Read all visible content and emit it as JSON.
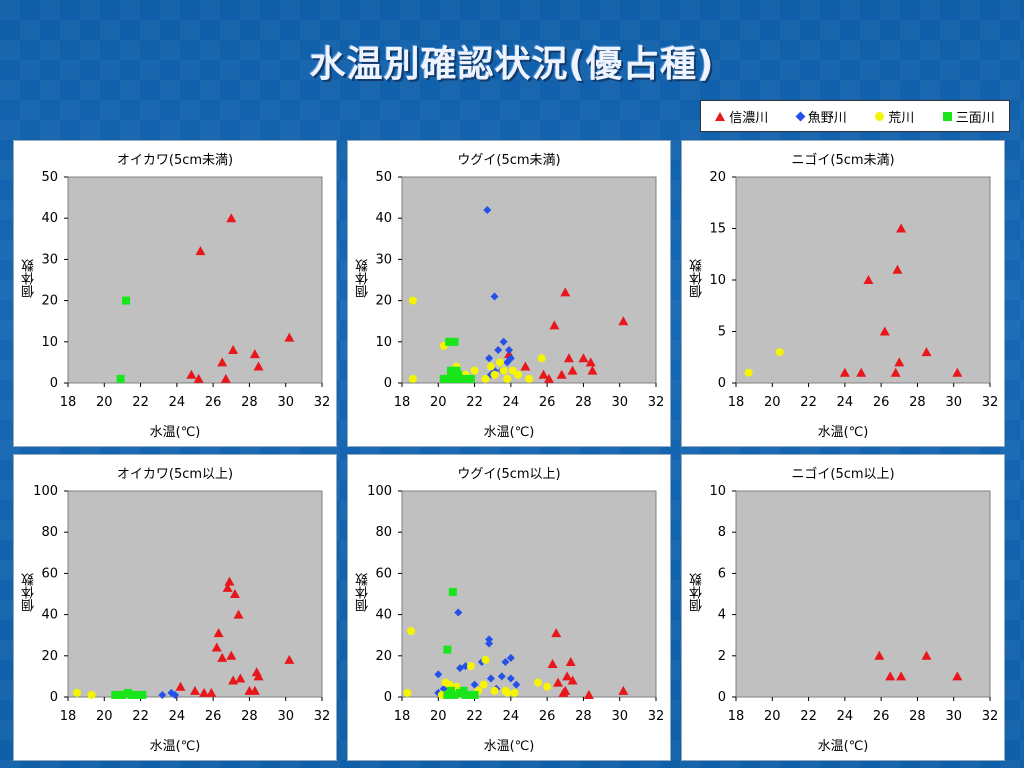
{
  "title": "水温別確認状況(優占種)",
  "legend": [
    {
      "label": "信濃川",
      "marker": "triangle",
      "color": "#e8171b"
    },
    {
      "label": "魚野川",
      "marker": "diamond",
      "color": "#2551e8"
    },
    {
      "label": "荒川",
      "marker": "circle",
      "color": "#f5f500"
    },
    {
      "label": "三面川",
      "marker": "square",
      "color": "#19e61a"
    }
  ],
  "chart_data": [
    {
      "type": "scatter",
      "title": "オイカワ(5cm未満)",
      "xlabel": "水温(℃)",
      "ylabel": "個体数",
      "xlim": [
        18,
        32
      ],
      "xticks": [
        18,
        20,
        22,
        24,
        26,
        28,
        30,
        32
      ],
      "ylim": [
        0,
        50
      ],
      "yticks": [
        0,
        10,
        20,
        30,
        40,
        50
      ],
      "series": [
        {
          "name": "信濃川",
          "values": [
            [
              25.3,
              32
            ],
            [
              27,
              40
            ],
            [
              24.8,
              2
            ],
            [
              25.2,
              1
            ],
            [
              26.5,
              5
            ],
            [
              26.7,
              1
            ],
            [
              27.1,
              8
            ],
            [
              28.3,
              7
            ],
            [
              28.5,
              4
            ],
            [
              30.2,
              11
            ]
          ]
        },
        {
          "name": "魚野川",
          "values": []
        },
        {
          "name": "荒川",
          "values": []
        },
        {
          "name": "三面川",
          "values": [
            [
              21.2,
              20
            ],
            [
              20.9,
              1
            ]
          ]
        }
      ]
    },
    {
      "type": "scatter",
      "title": "ウグイ(5cm未満)",
      "xlabel": "水温(℃)",
      "ylabel": "個体数",
      "xlim": [
        18,
        32
      ],
      "xticks": [
        18,
        20,
        22,
        24,
        26,
        28,
        30,
        32
      ],
      "ylim": [
        0,
        50
      ],
      "yticks": [
        0,
        10,
        20,
        30,
        40,
        50
      ],
      "series": [
        {
          "name": "信濃川",
          "values": [
            [
              23.9,
              7
            ],
            [
              24.8,
              4
            ],
            [
              25.8,
              2
            ],
            [
              26.1,
              1
            ],
            [
              26.4,
              14
            ],
            [
              26.8,
              2
            ],
            [
              27,
              22
            ],
            [
              27.2,
              6
            ],
            [
              27.4,
              3
            ],
            [
              28,
              6
            ],
            [
              28.4,
              5
            ],
            [
              28.5,
              3
            ],
            [
              30.2,
              15
            ]
          ]
        },
        {
          "name": "魚野川",
          "values": [
            [
              22.7,
              42
            ],
            [
              22.8,
              6
            ],
            [
              23.1,
              21
            ],
            [
              23.1,
              3
            ],
            [
              23.3,
              8
            ],
            [
              23.6,
              10
            ],
            [
              23.9,
              8
            ],
            [
              23.8,
              5
            ],
            [
              22.9,
              2
            ],
            [
              23.5,
              3
            ],
            [
              24,
              6
            ],
            [
              20.9,
              10
            ]
          ]
        },
        {
          "name": "荒川",
          "values": [
            [
              18.6,
              20
            ],
            [
              18.6,
              1
            ],
            [
              20.3,
              9
            ],
            [
              20.6,
              10
            ],
            [
              21.5,
              2
            ],
            [
              22,
              3
            ],
            [
              22.6,
              1
            ],
            [
              23.1,
              2
            ],
            [
              23.4,
              5
            ],
            [
              23.6,
              3
            ],
            [
              23.8,
              1
            ],
            [
              24.1,
              3
            ],
            [
              24.4,
              2
            ],
            [
              25,
              1
            ],
            [
              25.7,
              6
            ],
            [
              21,
              4
            ],
            [
              22.9,
              4
            ]
          ]
        },
        {
          "name": "三面川",
          "values": [
            [
              20.6,
              10
            ],
            [
              20.9,
              10
            ],
            [
              20.7,
              3
            ],
            [
              20.3,
              1
            ],
            [
              20.6,
              1
            ],
            [
              20.8,
              2
            ],
            [
              21,
              1
            ],
            [
              21.1,
              2
            ],
            [
              21.3,
              1
            ],
            [
              21.5,
              1
            ],
            [
              21.8,
              1
            ],
            [
              21,
              3
            ]
          ]
        }
      ]
    },
    {
      "type": "scatter",
      "title": "ニゴイ(5cm未満)",
      "xlabel": "水温(℃)",
      "ylabel": "個体数",
      "xlim": [
        18,
        32
      ],
      "xticks": [
        18,
        20,
        22,
        24,
        26,
        28,
        30,
        32
      ],
      "ylim": [
        0,
        20
      ],
      "yticks": [
        0,
        5,
        10,
        15,
        20
      ],
      "series": [
        {
          "name": "信濃川",
          "values": [
            [
              24,
              1
            ],
            [
              24.9,
              1
            ],
            [
              25.3,
              10
            ],
            [
              26.2,
              5
            ],
            [
              26.8,
              1
            ],
            [
              26.9,
              11
            ],
            [
              27,
              2
            ],
            [
              27.1,
              15
            ],
            [
              28.5,
              3
            ],
            [
              30.2,
              1
            ]
          ]
        },
        {
          "name": "魚野川",
          "values": []
        },
        {
          "name": "荒川",
          "values": [
            [
              18.7,
              1
            ],
            [
              20.4,
              3
            ]
          ]
        },
        {
          "name": "三面川",
          "values": []
        }
      ]
    },
    {
      "type": "scatter",
      "title": "オイカワ(5cm以上)",
      "xlabel": "水温(℃)",
      "ylabel": "個体数",
      "xlim": [
        18,
        32
      ],
      "xticks": [
        18,
        20,
        22,
        24,
        26,
        28,
        30,
        32
      ],
      "ylim": [
        0,
        100
      ],
      "yticks": [
        0,
        20,
        40,
        60,
        80,
        100
      ],
      "series": [
        {
          "name": "信濃川",
          "values": [
            [
              24.2,
              5
            ],
            [
              25,
              3
            ],
            [
              25.5,
              2
            ],
            [
              25.9,
              2
            ],
            [
              26.2,
              24
            ],
            [
              26.3,
              31
            ],
            [
              26.5,
              19
            ],
            [
              26.8,
              53
            ],
            [
              26.9,
              56
            ],
            [
              27,
              20
            ],
            [
              27.1,
              8
            ],
            [
              27.2,
              50
            ],
            [
              27.4,
              40
            ],
            [
              27.5,
              9
            ],
            [
              28,
              3
            ],
            [
              28.3,
              3
            ],
            [
              28.4,
              12
            ],
            [
              28.5,
              10
            ],
            [
              30.2,
              18
            ]
          ]
        },
        {
          "name": "魚野川",
          "values": [
            [
              23.2,
              1
            ],
            [
              23.7,
              2
            ],
            [
              23.9,
              1
            ]
          ]
        },
        {
          "name": "荒川",
          "values": [
            [
              18.5,
              2
            ],
            [
              19.3,
              1
            ]
          ]
        },
        {
          "name": "三面川",
          "values": [
            [
              20.6,
              1
            ],
            [
              20.9,
              1
            ],
            [
              21,
              1
            ],
            [
              21.3,
              2
            ],
            [
              21.5,
              1
            ],
            [
              21.8,
              1
            ],
            [
              22.1,
              1
            ]
          ]
        }
      ]
    },
    {
      "type": "scatter",
      "title": "ウグイ(5cm以上)",
      "xlabel": "水温(℃)",
      "ylabel": "個体数",
      "xlim": [
        18,
        32
      ],
      "xticks": [
        18,
        20,
        22,
        24,
        26,
        28,
        30,
        32
      ],
      "ylim": [
        0,
        100
      ],
      "yticks": [
        0,
        20,
        40,
        60,
        80,
        100
      ],
      "series": [
        {
          "name": "信濃川",
          "values": [
            [
              26.3,
              16
            ],
            [
              26.5,
              31
            ],
            [
              26.6,
              7
            ],
            [
              26.9,
              2
            ],
            [
              27,
              3
            ],
            [
              27.1,
              10
            ],
            [
              27.3,
              17
            ],
            [
              27.4,
              8
            ],
            [
              28.3,
              1
            ],
            [
              30.2,
              3
            ]
          ]
        },
        {
          "name": "魚野川",
          "values": [
            [
              20,
              11
            ],
            [
              20,
              2
            ],
            [
              20.3,
              4
            ],
            [
              21.1,
              41
            ],
            [
              21.2,
              14
            ],
            [
              21.5,
              15
            ],
            [
              22.4,
              17
            ],
            [
              22.8,
              26
            ],
            [
              22.8,
              28
            ],
            [
              22.9,
              9
            ],
            [
              23.2,
              4
            ],
            [
              23.5,
              10
            ],
            [
              23.7,
              17
            ],
            [
              24,
              19
            ],
            [
              24,
              9
            ],
            [
              22,
              6
            ],
            [
              20.6,
              6
            ],
            [
              24.3,
              6
            ]
          ]
        },
        {
          "name": "荒川",
          "values": [
            [
              18.3,
              2
            ],
            [
              18.5,
              32
            ],
            [
              20.2,
              1
            ],
            [
              20.4,
              7
            ],
            [
              20.6,
              6
            ],
            [
              21,
              5
            ],
            [
              21.8,
              15
            ],
            [
              22.2,
              3
            ],
            [
              22.6,
              18
            ],
            [
              23.1,
              3
            ],
            [
              23.7,
              3
            ],
            [
              23.8,
              2
            ],
            [
              24.2,
              2
            ],
            [
              25.5,
              7
            ],
            [
              26,
              5
            ],
            [
              22.5,
              6
            ]
          ]
        },
        {
          "name": "三面川",
          "values": [
            [
              20.5,
              23
            ],
            [
              20.8,
              51
            ],
            [
              20.7,
              3
            ],
            [
              20.9,
              1
            ],
            [
              21.2,
              2
            ],
            [
              21.4,
              3
            ],
            [
              21.5,
              1
            ],
            [
              21.8,
              1
            ],
            [
              22,
              1
            ],
            [
              20.5,
              1
            ]
          ]
        }
      ]
    },
    {
      "type": "scatter",
      "title": "ニゴイ(5cm以上)",
      "xlabel": "水温(℃)",
      "ylabel": "個体数",
      "xlim": [
        18,
        32
      ],
      "xticks": [
        18,
        20,
        22,
        24,
        26,
        28,
        30,
        32
      ],
      "ylim": [
        0,
        10
      ],
      "yticks": [
        0,
        2,
        4,
        6,
        8,
        10
      ],
      "series": [
        {
          "name": "信濃川",
          "values": [
            [
              25.9,
              2
            ],
            [
              26.5,
              1
            ],
            [
              27.1,
              1
            ],
            [
              28.5,
              2
            ],
            [
              30.2,
              1
            ]
          ]
        },
        {
          "name": "魚野川",
          "values": []
        },
        {
          "name": "荒川",
          "values": []
        },
        {
          "name": "三面川",
          "values": []
        }
      ]
    }
  ]
}
